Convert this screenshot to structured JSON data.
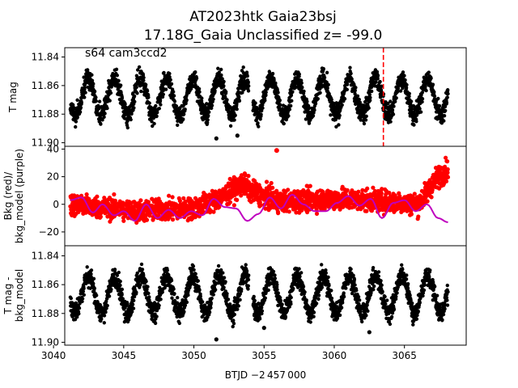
{
  "figure": {
    "title_line1": "AT2023htk  Gaia23bsj",
    "title_line2": "17.18G_Gaia Unclassified z= -99.0",
    "annotation": "s64 cam3ccd2",
    "xlabel": "BTJD −2 457 000"
  },
  "colors": {
    "flux": "#000000",
    "background": "#ff0000",
    "bkg_model": "#bf00bf",
    "event_line": "#ff0000"
  },
  "chart_data": [
    {
      "type": "scatter",
      "panel": "top",
      "ylabel": "T mag",
      "xlim": [
        3040.8,
        3069.4
      ],
      "ylim": [
        11.9025,
        11.8335
      ],
      "y_inverted": true,
      "yticks": [
        11.84,
        11.86,
        11.88,
        11.9
      ],
      "ytick_labels": [
        "11.84",
        "11.86",
        "11.88",
        "11.90"
      ],
      "vertical_line": {
        "x": 3063.5,
        "style": "dashed",
        "color": "red"
      },
      "series": [
        {
          "name": "T mag",
          "color": "black",
          "mean": 11.868,
          "amplitude": 0.013,
          "period": 1.86,
          "noise": 0.005,
          "x_range": [
            3041.2,
            3068.1
          ],
          "gaps": [
            [
              3053.9,
              3054.2
            ]
          ],
          "outliers": [
            [
              3051.6,
              11.897
            ],
            [
              3053.1,
              11.895
            ]
          ]
        }
      ]
    },
    {
      "type": "scatter",
      "panel": "middle",
      "ylabel": "Bkg (red)/\nbkg_model (purple)",
      "xlim": [
        3040.8,
        3069.4
      ],
      "ylim": [
        -30,
        42
      ],
      "yticks": [
        -20,
        0,
        20,
        40
      ],
      "ytick_labels": [
        "−20",
        "0",
        "20",
        "40"
      ],
      "series": [
        {
          "name": "Bkg",
          "color": "red",
          "type": "scatter",
          "x_range": [
            3041.2,
            3068.1
          ],
          "baseline": [
            [
              3041.2,
              0
            ],
            [
              3046,
              -5
            ],
            [
              3050,
              -3
            ],
            [
              3052,
              5
            ],
            [
              3053.5,
              15
            ],
            [
              3054,
              10
            ],
            [
              3056,
              2
            ],
            [
              3060,
              4
            ],
            [
              3064,
              2
            ],
            [
              3066,
              0
            ],
            [
              3067.2,
              18
            ],
            [
              3068,
              25
            ]
          ],
          "spread": 10,
          "outliers": [
            [
              3055.9,
              39
            ]
          ]
        },
        {
          "name": "bkg_model",
          "color": "purple",
          "type": "line",
          "x": [
            3041.2,
            3042.0,
            3042.8,
            3043.5,
            3044.3,
            3045.0,
            3045.8,
            3046.6,
            3047.4,
            3048.2,
            3049.0,
            3049.8,
            3050.6,
            3051.4,
            3052.2,
            3053.0,
            3053.8,
            3054.6,
            3055.4,
            3056.2,
            3057.0,
            3057.8,
            3058.6,
            3059.4,
            3060.2,
            3061.0,
            3061.8,
            3062.6,
            3063.4,
            3064.2,
            3065.0,
            3065.8,
            3066.6,
            3067.4,
            3068.1
          ],
          "y": [
            3,
            5,
            -6,
            0,
            -8,
            -5,
            -12,
            0,
            -10,
            -4,
            -10,
            -5,
            -8,
            4,
            -2,
            -3,
            -12,
            -7,
            5,
            -3,
            7,
            0,
            -5,
            -5,
            1,
            6,
            -1,
            4,
            -10,
            1,
            3,
            -5,
            0,
            -10,
            -13
          ]
        }
      ]
    },
    {
      "type": "scatter",
      "panel": "bottom",
      "ylabel": "T mag -\nbkg_model",
      "xlim": [
        3040.8,
        3069.4
      ],
      "ylim": [
        11.902,
        11.833
      ],
      "y_inverted": true,
      "yticks": [
        11.84,
        11.86,
        11.88,
        11.9
      ],
      "ytick_labels": [
        "11.84",
        "11.86",
        "11.88",
        "11.90"
      ],
      "xticks": [
        3040,
        3045,
        3050,
        3055,
        3060,
        3065
      ],
      "xtick_labels": [
        "3040",
        "3045",
        "3050",
        "3055",
        "3060",
        "3065"
      ],
      "series": [
        {
          "name": "T mag - bkg_model",
          "color": "black",
          "mean": 11.867,
          "amplitude": 0.013,
          "period": 1.86,
          "noise": 0.005,
          "x_range": [
            3041.2,
            3068.1
          ],
          "gaps": [
            [
              3053.9,
              3054.2
            ]
          ],
          "outliers": [
            [
              3051.6,
              11.898
            ],
            [
              3055.0,
              11.89
            ],
            [
              3062.5,
              11.893
            ]
          ]
        }
      ]
    }
  ]
}
